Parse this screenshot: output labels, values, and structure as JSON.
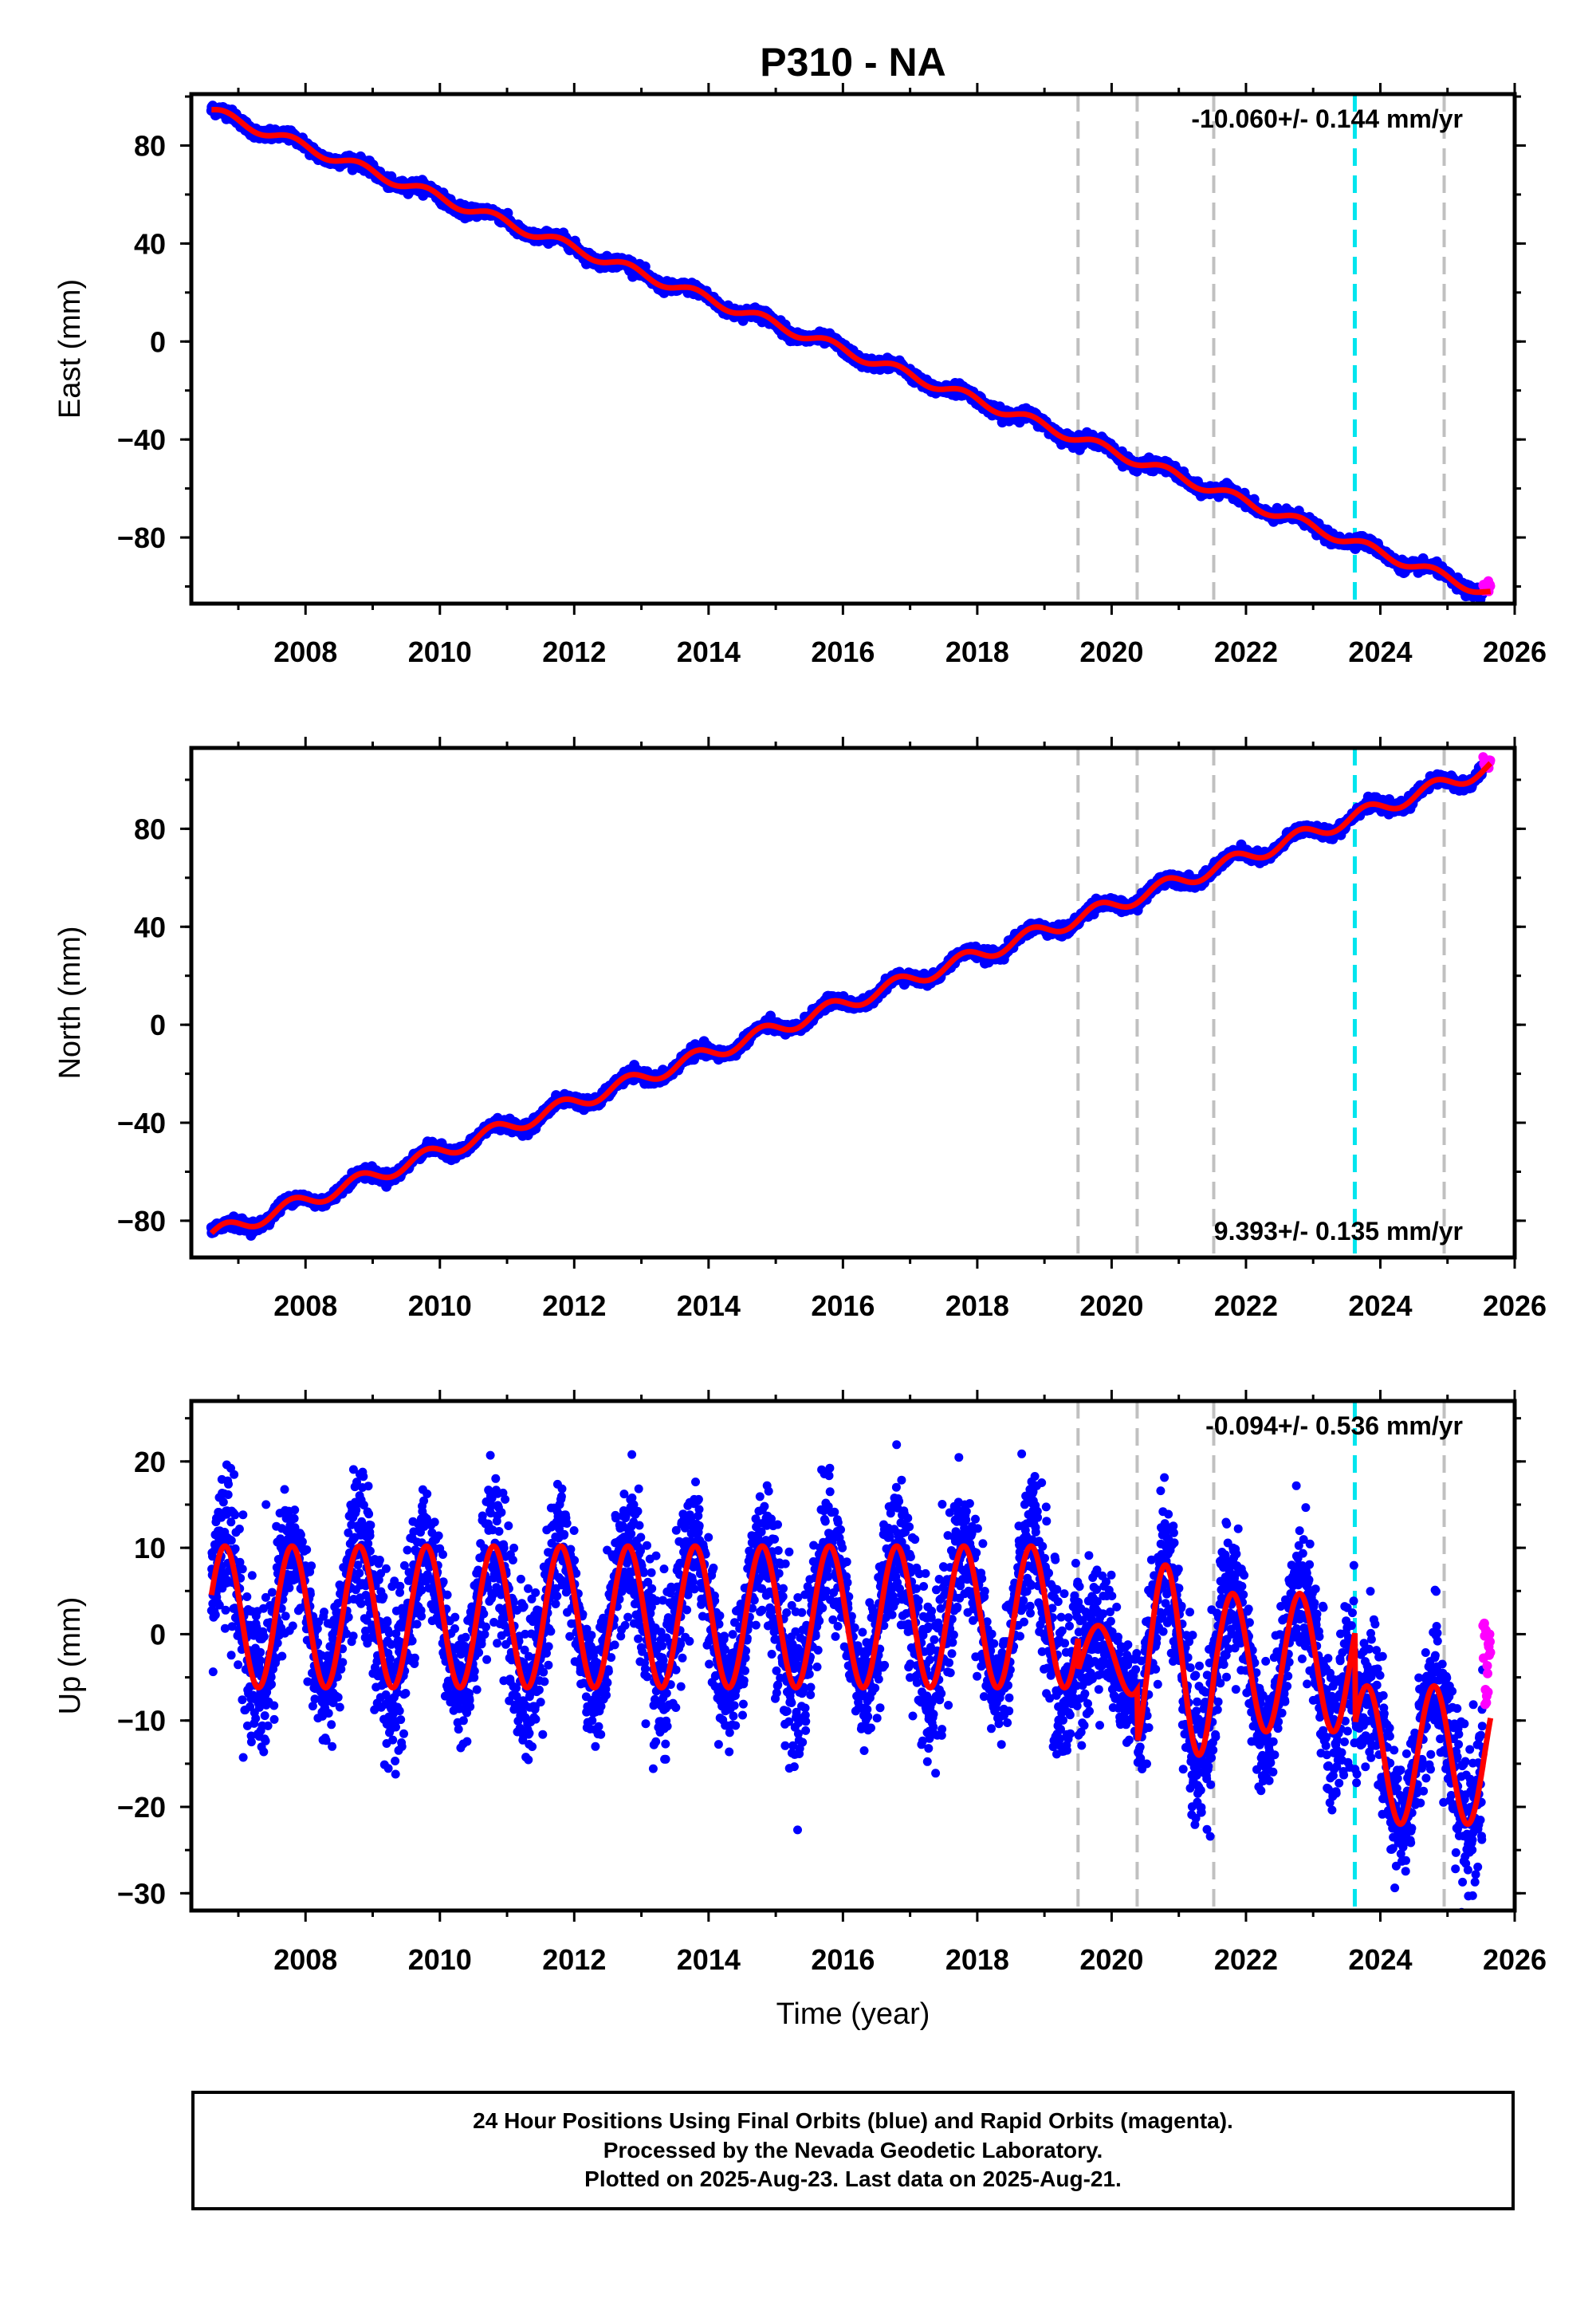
{
  "title": "P310 - NA",
  "footer": {
    "line1": "24 Hour Positions Using Final Orbits (blue) and Rapid Orbits (magenta).",
    "line2": "Processed by the Nevada Geodetic Laboratory.",
    "line3": "Plotted on 2025-Aug-23. Last data on 2025-Aug-21."
  },
  "colors": {
    "final_orbits": "#0000ff",
    "rapid_orbits": "#ff00ff",
    "model_fit": "#ff0000",
    "event_lines": "#c0c0c0",
    "antenna_change_line": "#00e5ee"
  },
  "chart_data": [
    {
      "type": "scatter",
      "component": "east",
      "ylabel": "East (mm)",
      "xlim": [
        2006.3,
        2026.0
      ],
      "ylim": [
        -107,
        101
      ],
      "xticks": [
        2008,
        2010,
        2012,
        2014,
        2016,
        2018,
        2020,
        2022,
        2024,
        2026
      ],
      "yticks": [
        -80,
        -40,
        0,
        40,
        80
      ],
      "rate_label": "-10.060+/- 0.144 mm/yr",
      "rate_label_position": "top-right",
      "series": [
        {
          "name": "Final Orbits (blue)",
          "x_start": 2006.6,
          "x_end": 2025.53,
          "approx_start": 94,
          "approx_end": -102,
          "rate_mm_per_yr": -10.06,
          "seasonal_amplitude_mm": 2
        },
        {
          "name": "Rapid Orbits (magenta)",
          "x_start": 2025.53,
          "x_end": 2025.64,
          "approx_value": -100
        },
        {
          "name": "model fit",
          "x_start": 2006.6,
          "x_end": 2025.64
        }
      ],
      "vertical_lines": {
        "gray_dashed": [
          2019.5,
          2020.38,
          2021.52,
          2024.95
        ],
        "cyan_dashed": [
          2023.62
        ]
      }
    },
    {
      "type": "scatter",
      "component": "north",
      "ylabel": "North (mm)",
      "xlim": [
        2006.3,
        2026.0
      ],
      "ylim": [
        -95,
        113
      ],
      "xticks": [
        2008,
        2010,
        2012,
        2014,
        2016,
        2018,
        2020,
        2022,
        2024,
        2026
      ],
      "yticks": [
        -80,
        -40,
        0,
        40,
        80
      ],
      "rate_label": "9.393+/- 0.135 mm/yr",
      "rate_label_position": "bottom-right",
      "series": [
        {
          "name": "Final Orbits (blue)",
          "x_start": 2006.6,
          "x_end": 2025.53,
          "approx_start": -86,
          "approx_end": 104,
          "rate_mm_per_yr": 9.393,
          "seasonal_amplitude_mm": 3
        },
        {
          "name": "Rapid Orbits (magenta)",
          "x_start": 2025.53,
          "x_end": 2025.64,
          "approx_value": 107
        },
        {
          "name": "model fit",
          "x_start": 2006.6,
          "x_end": 2025.64
        }
      ],
      "vertical_lines": {
        "gray_dashed": [
          2019.5,
          2020.38,
          2021.52,
          2024.95
        ],
        "cyan_dashed": [
          2023.62
        ]
      }
    },
    {
      "type": "scatter",
      "component": "up",
      "xlabel": "Time (year)",
      "ylabel": "Up (mm)",
      "xlim": [
        2006.3,
        2026.0
      ],
      "ylim": [
        -32,
        27
      ],
      "xticks": [
        2008,
        2010,
        2012,
        2014,
        2016,
        2018,
        2020,
        2022,
        2024,
        2026
      ],
      "yticks": [
        -30,
        -20,
        -10,
        0,
        10,
        20
      ],
      "rate_label": "-0.094+/- 0.536 mm/yr",
      "rate_label_position": "top-right",
      "series": [
        {
          "name": "Final Orbits (blue)",
          "x_start": 2006.6,
          "x_end": 2025.53,
          "approx_mean": -1,
          "seasonal_amplitude_mm": 8,
          "scatter_mm": 4
        },
        {
          "name": "Rapid Orbits (magenta)",
          "x_start": 2025.53,
          "x_end": 2025.64,
          "approx_range": [
            -9,
            2
          ]
        },
        {
          "name": "model fit",
          "x_start": 2006.6,
          "x_end": 2025.64,
          "segments": [
            {
              "x_start": 2006.6,
              "x_end": 2019.5,
              "offset": 2,
              "amplitude": 8.2
            },
            {
              "x_start": 2019.5,
              "x_end": 2020.38,
              "offset": -3,
              "amplitude": 4
            },
            {
              "x_start": 2020.38,
              "x_end": 2021.52,
              "offset": -3,
              "amplitude": 11
            },
            {
              "x_start": 2021.52,
              "x_end": 2023.62,
              "offset": -3.3,
              "amplitude": 8
            },
            {
              "x_start": 2023.62,
              "x_end": 2025.64,
              "offset": -14,
              "amplitude": 8
            }
          ]
        }
      ],
      "vertical_lines": {
        "gray_dashed": [
          2019.5,
          2020.38,
          2021.52,
          2024.95
        ],
        "cyan_dashed": [
          2023.62
        ]
      }
    }
  ]
}
